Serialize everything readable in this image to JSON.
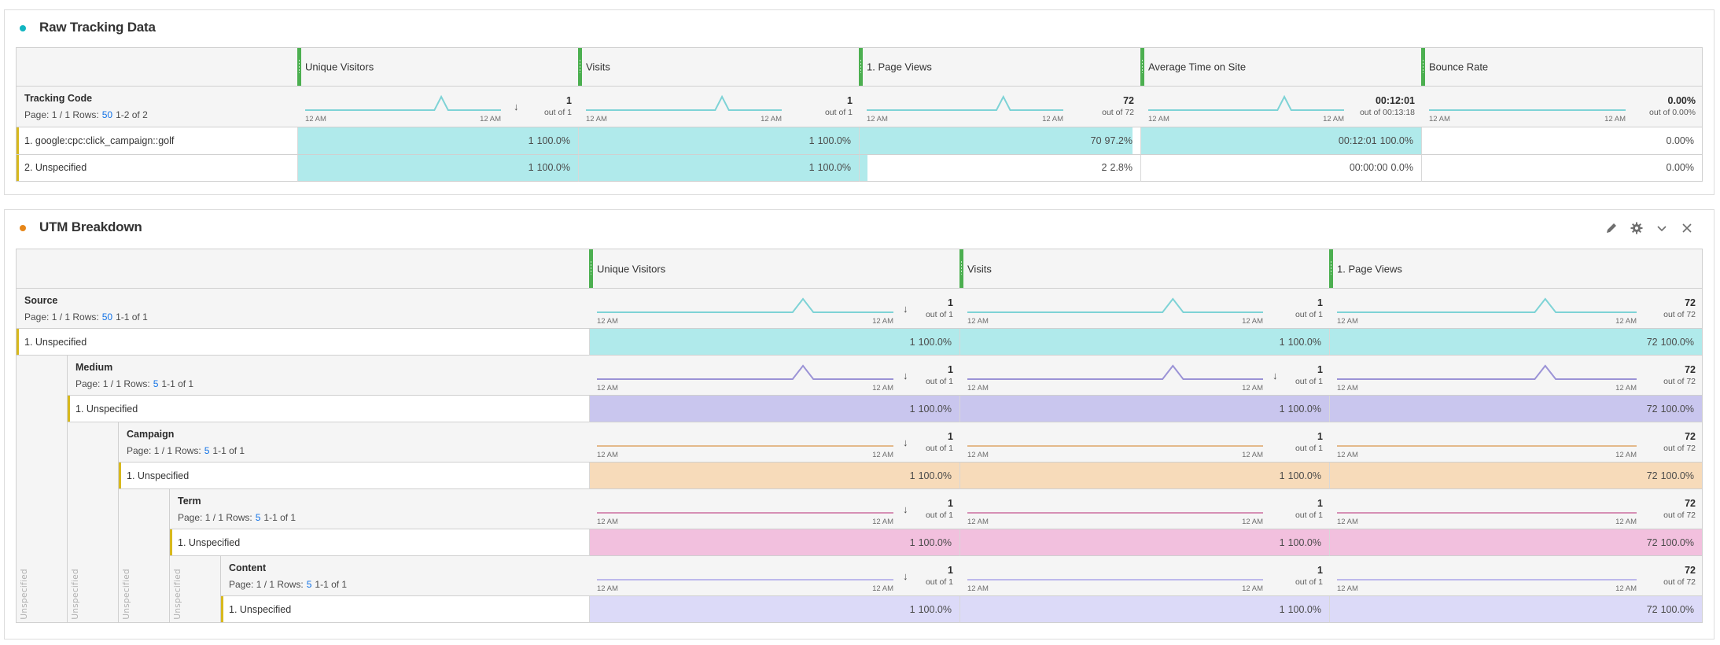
{
  "panels": [
    {
      "title": "Raw Tracking Data",
      "dot_color": "#12b5c1",
      "columns": [
        "Unique Visitors",
        "Visits",
        "1. Page Views",
        "Average Time on Site",
        "Bounce Rate"
      ],
      "dimension": {
        "name": "Tracking Code",
        "pager_prefix": "Page: 1 / 1 Rows:",
        "rows_value": "50",
        "range": "1-2 of 2"
      },
      "summary": [
        {
          "total": "1",
          "out_of": "out of 1",
          "tick_start": "12 AM",
          "tick_end": "12 AM",
          "sorted": true,
          "spike": true
        },
        {
          "total": "1",
          "out_of": "out of 1",
          "tick_start": "12 AM",
          "tick_end": "12 AM",
          "sorted": false,
          "spike": true
        },
        {
          "total": "72",
          "out_of": "out of 72",
          "tick_start": "12 AM",
          "tick_end": "12 AM",
          "sorted": false,
          "spike": true
        },
        {
          "total": "00:12:01",
          "out_of": "out of 00:13:18",
          "tick_start": "12 AM",
          "tick_end": "12 AM",
          "sorted": false,
          "spike": true
        },
        {
          "total": "0.00%",
          "out_of": "out of 0.00%",
          "tick_start": "12 AM",
          "tick_end": "12 AM",
          "sorted": false,
          "spike": false
        }
      ],
      "rows": [
        {
          "label": "1.  google:cpc:click_campaign::golf",
          "cells": [
            {
              "value": "1",
              "pct": "100.0%",
              "fill": 1.0
            },
            {
              "value": "1",
              "pct": "100.0%",
              "fill": 1.0
            },
            {
              "value": "70",
              "pct": "97.2%",
              "fill": 0.972
            },
            {
              "value": "00:12:01",
              "pct": "100.0%",
              "fill": 1.0
            },
            {
              "value": "0.00%",
              "pct": "",
              "fill": 0
            }
          ]
        },
        {
          "label": "2.  Unspecified",
          "cells": [
            {
              "value": "1",
              "pct": "100.0%",
              "fill": 1.0
            },
            {
              "value": "1",
              "pct": "100.0%",
              "fill": 1.0
            },
            {
              "value": "2",
              "pct": "2.8%",
              "fill": 0.028
            },
            {
              "value": "00:00:00",
              "pct": "0.0%",
              "fill": 0
            },
            {
              "value": "0.00%",
              "pct": "",
              "fill": 0
            }
          ]
        }
      ]
    },
    {
      "title": "UTM Breakdown",
      "dot_color": "#e68619",
      "columns": [
        "Unique Visitors",
        "Visits",
        "1. Page Views"
      ],
      "levels": [
        {
          "name": "Source",
          "pager_prefix": "Page: 1 / 1 Rows:",
          "rows_value": "50",
          "range": "1-1 of 1",
          "color": "#7ed3d6",
          "fill_color": "#b0eaeb",
          "summary": [
            {
              "total": "1",
              "out_of": "out of 1",
              "sorted": true,
              "spike": true
            },
            {
              "total": "1",
              "out_of": "out of 1",
              "sorted": false,
              "spike": true
            },
            {
              "total": "72",
              "out_of": "out of 72",
              "sorted": false,
              "spike": true
            }
          ],
          "row_label": "1.  Unspecified",
          "cells": [
            {
              "value": "1",
              "pct": "100.0%"
            },
            {
              "value": "1",
              "pct": "100.0%"
            },
            {
              "value": "72",
              "pct": "100.0%"
            }
          ],
          "rail_label": "Unspecified"
        },
        {
          "name": "Medium",
          "pager_prefix": "Page: 1 / 1 Rows:",
          "rows_value": "5",
          "range": "1-1 of 1",
          "color": "#9b93d6",
          "fill_color": "#c9c6ee",
          "summary": [
            {
              "total": "1",
              "out_of": "out of 1",
              "sorted": true,
              "spike": true
            },
            {
              "total": "1",
              "out_of": "out of 1",
              "sorted": true,
              "spike": true
            },
            {
              "total": "72",
              "out_of": "out of 72",
              "sorted": false,
              "spike": true
            }
          ],
          "row_label": "1.  Unspecified",
          "cells": [
            {
              "value": "1",
              "pct": "100.0%"
            },
            {
              "value": "1",
              "pct": "100.0%"
            },
            {
              "value": "72",
              "pct": "100.0%"
            }
          ],
          "rail_label": "Unspecified"
        },
        {
          "name": "Campaign",
          "pager_prefix": "Page: 1 / 1 Rows:",
          "rows_value": "5",
          "range": "1-1 of 1",
          "color": "#e3b98a",
          "fill_color": "#f7dbba",
          "summary": [
            {
              "total": "1",
              "out_of": "out of 1",
              "sorted": true,
              "spike": false
            },
            {
              "total": "1",
              "out_of": "out of 1",
              "sorted": false,
              "spike": false
            },
            {
              "total": "72",
              "out_of": "out of 72",
              "sorted": false,
              "spike": false
            }
          ],
          "row_label": "1.  Unspecified",
          "cells": [
            {
              "value": "1",
              "pct": "100.0%"
            },
            {
              "value": "1",
              "pct": "100.0%"
            },
            {
              "value": "72",
              "pct": "100.0%"
            }
          ],
          "rail_label": "Unspecified"
        },
        {
          "name": "Term",
          "pager_prefix": "Page: 1 / 1 Rows:",
          "rows_value": "5",
          "range": "1-1 of 1",
          "color": "#d68fb5",
          "fill_color": "#f2c0de",
          "summary": [
            {
              "total": "1",
              "out_of": "out of 1",
              "sorted": true,
              "spike": false
            },
            {
              "total": "1",
              "out_of": "out of 1",
              "sorted": false,
              "spike": false
            },
            {
              "total": "72",
              "out_of": "out of 72",
              "sorted": false,
              "spike": false
            }
          ],
          "row_label": "1.  Unspecified",
          "cells": [
            {
              "value": "1",
              "pct": "100.0%"
            },
            {
              "value": "1",
              "pct": "100.0%"
            },
            {
              "value": "72",
              "pct": "100.0%"
            }
          ],
          "rail_label": "Unspecified"
        },
        {
          "name": "Content",
          "pager_prefix": "Page: 1 / 1 Rows:",
          "rows_value": "5",
          "range": "1-1 of 1",
          "color": "#bdb8ec",
          "fill_color": "#dcdaf8",
          "summary": [
            {
              "total": "1",
              "out_of": "out of 1",
              "sorted": true,
              "spike": false
            },
            {
              "total": "1",
              "out_of": "out of 1",
              "sorted": false,
              "spike": false
            },
            {
              "total": "72",
              "out_of": "out of 72",
              "sorted": false,
              "spike": false
            }
          ],
          "row_label": "1.  Unspecified",
          "cells": [
            {
              "value": "1",
              "pct": "100.0%"
            },
            {
              "value": "1",
              "pct": "100.0%"
            },
            {
              "value": "72",
              "pct": "100.0%"
            }
          ]
        }
      ],
      "tick_start": "12 AM",
      "tick_end": "12 AM",
      "toolbar": {
        "edit_icon": "pencil-icon",
        "settings_icon": "gear-icon",
        "collapse_icon": "chevron-down-icon",
        "close_icon": "close-icon"
      }
    }
  ],
  "colors": {
    "teal_line": "#7ed3d6",
    "teal_fill": "#b0eaeb",
    "grip_green": "#4caf50",
    "row_marker": "#d8b91e",
    "link_blue": "#1473e6"
  }
}
